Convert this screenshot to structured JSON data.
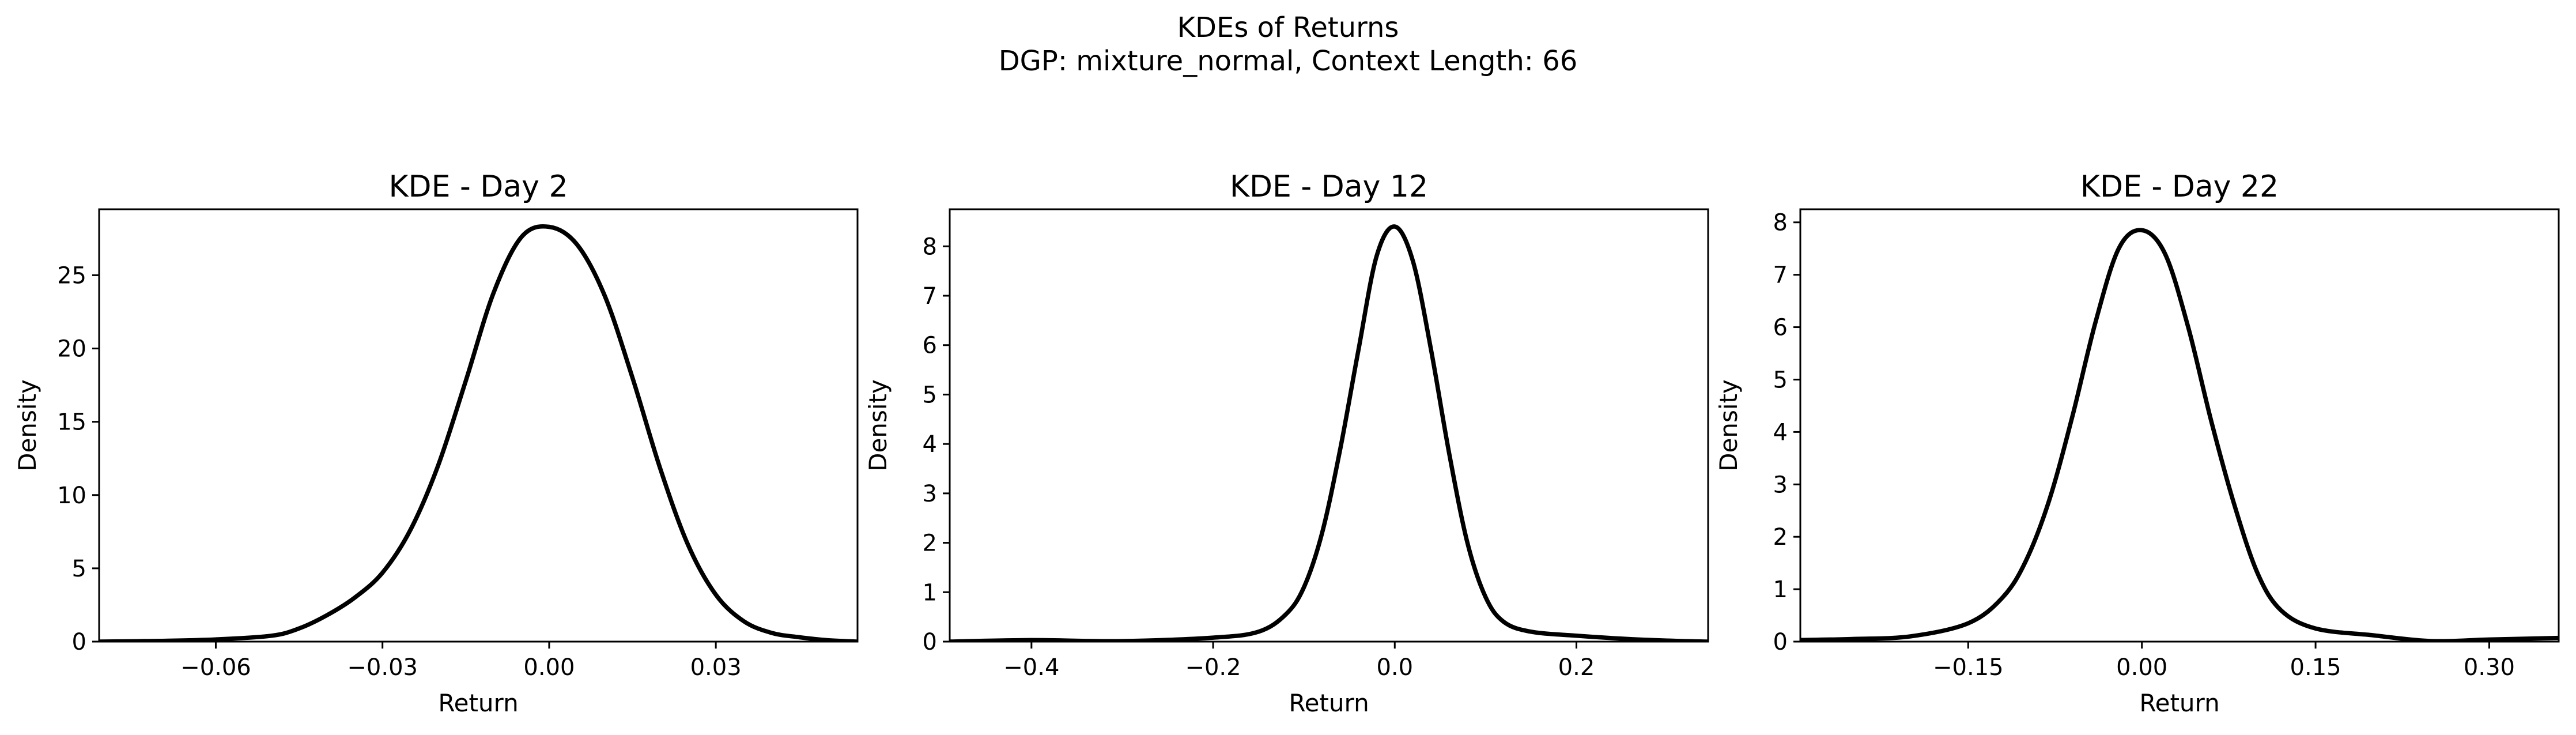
{
  "figure": {
    "title_line1": "KDEs of Returns",
    "title_line2": "DGP: mixture_normal, Context Length: 66"
  },
  "chart_data": [
    {
      "type": "line",
      "title": "KDE - Day 2",
      "xlabel": "Return",
      "ylabel": "Density",
      "xlim": [
        -0.081,
        0.0555
      ],
      "ylim": [
        0,
        29.5
      ],
      "xticks": [
        -0.06,
        -0.03,
        0.0,
        0.03
      ],
      "xtick_labels": [
        "−0.06",
        "−0.03",
        "0.00",
        "0.03"
      ],
      "yticks": [
        0,
        5,
        10,
        15,
        20,
        25
      ],
      "ytick_labels": [
        "0",
        "5",
        "10",
        "15",
        "20",
        "25"
      ],
      "grid": false,
      "series": [
        {
          "color": "#000000",
          "x": [
            -0.081,
            -0.07,
            -0.06,
            -0.05,
            -0.045,
            -0.04,
            -0.035,
            -0.03,
            -0.025,
            -0.02,
            -0.015,
            -0.01,
            -0.005,
            0.0,
            0.005,
            0.01,
            0.015,
            0.02,
            0.025,
            0.03,
            0.035,
            0.04,
            0.045,
            0.05,
            0.0555
          ],
          "y": [
            0.0,
            0.05,
            0.15,
            0.4,
            0.9,
            1.8,
            3.0,
            4.7,
            7.6,
            12.0,
            17.8,
            23.8,
            27.6,
            28.3,
            27.1,
            23.6,
            18.0,
            11.8,
            6.6,
            3.2,
            1.4,
            0.6,
            0.3,
            0.1,
            0.0
          ]
        }
      ]
    },
    {
      "type": "line",
      "title": "KDE - Day 12",
      "xlabel": "Return",
      "ylabel": "Density",
      "xlim": [
        -0.49,
        0.345
      ],
      "ylim": [
        0,
        8.75
      ],
      "xticks": [
        -0.4,
        -0.2,
        0.0,
        0.2
      ],
      "xtick_labels": [
        "−0.4",
        "−0.2",
        "0.0",
        "0.2"
      ],
      "yticks": [
        0,
        1,
        2,
        3,
        4,
        5,
        6,
        7,
        8
      ],
      "ytick_labels": [
        "0",
        "1",
        "2",
        "3",
        "4",
        "5",
        "6",
        "7",
        "8"
      ],
      "grid": false,
      "series": [
        {
          "color": "#000000",
          "x": [
            -0.49,
            -0.4,
            -0.3,
            -0.2,
            -0.15,
            -0.12,
            -0.1,
            -0.08,
            -0.06,
            -0.04,
            -0.02,
            0.0,
            0.02,
            0.04,
            0.06,
            0.08,
            0.1,
            0.12,
            0.15,
            0.2,
            0.25,
            0.3,
            0.345
          ],
          "y": [
            0.0,
            0.03,
            0.01,
            0.08,
            0.2,
            0.55,
            1.1,
            2.2,
            3.9,
            5.9,
            7.8,
            8.4,
            7.7,
            5.9,
            3.8,
            2.0,
            0.9,
            0.4,
            0.2,
            0.12,
            0.06,
            0.02,
            0.0
          ]
        }
      ]
    },
    {
      "type": "line",
      "title": "KDE - Day 22",
      "xlabel": "Return",
      "ylabel": "Density",
      "xlim": [
        -0.295,
        0.36
      ],
      "ylim": [
        0,
        8.25
      ],
      "xticks": [
        -0.15,
        0.0,
        0.15,
        0.3
      ],
      "xtick_labels": [
        "−0.15",
        "0.00",
        "0.15",
        "0.30"
      ],
      "yticks": [
        0,
        1,
        2,
        3,
        4,
        5,
        6,
        7,
        8
      ],
      "ytick_labels": [
        "0",
        "1",
        "2",
        "3",
        "4",
        "5",
        "6",
        "7",
        "8"
      ],
      "grid": false,
      "series": [
        {
          "color": "#000000",
          "x": [
            -0.295,
            -0.25,
            -0.2,
            -0.15,
            -0.12,
            -0.1,
            -0.08,
            -0.06,
            -0.04,
            -0.02,
            0.0,
            0.02,
            0.04,
            0.06,
            0.08,
            0.1,
            0.12,
            0.15,
            0.2,
            0.25,
            0.3,
            0.36
          ],
          "y": [
            0.03,
            0.05,
            0.1,
            0.35,
            0.85,
            1.55,
            2.7,
            4.3,
            6.1,
            7.5,
            7.85,
            7.4,
            6.0,
            4.2,
            2.6,
            1.3,
            0.6,
            0.25,
            0.12,
            0.01,
            0.04,
            0.07
          ]
        }
      ]
    }
  ]
}
